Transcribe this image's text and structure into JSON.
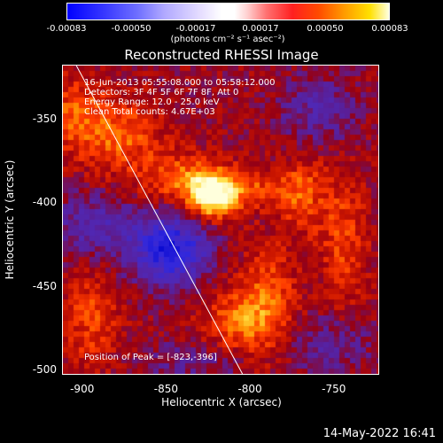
{
  "colorbar": {
    "ticks": [
      "-0.00083",
      "-0.00050",
      "-0.00017",
      "0.00017",
      "0.00050",
      "0.00083"
    ],
    "units": "(photons cm⁻² s⁻¹ asec⁻²)"
  },
  "chart_data": {
    "type": "heatmap",
    "title": "Reconstructed RHESSI Image",
    "xlabel": "Heliocentric X (arcsec)",
    "ylabel": "Heliocentric Y (arcsec)",
    "xlim": [
      -912,
      -724
    ],
    "ylim": [
      -502,
      -318
    ],
    "xticks": [
      "-900",
      "-850",
      "-800",
      "-750"
    ],
    "yticks": [
      "-350",
      "-400",
      "-450",
      "-500"
    ],
    "zlim": [
      -0.00083,
      0.00083
    ],
    "peak": [
      -823,
      -396
    ],
    "limb_line": [
      [
        -904,
        -318
      ],
      [
        -805,
        -502
      ]
    ],
    "blobs": [
      {
        "x": -823,
        "y": -396,
        "sx": 10,
        "sy": 9,
        "a": 0.00085
      },
      {
        "x": -840,
        "y": -385,
        "sx": 18,
        "sy": 10,
        "a": 0.0004
      },
      {
        "x": -800,
        "y": -392,
        "sx": 16,
        "sy": 8,
        "a": 0.0003
      },
      {
        "x": -770,
        "y": -395,
        "sx": 10,
        "sy": 15,
        "a": 0.00035
      },
      {
        "x": -745,
        "y": -420,
        "sx": 10,
        "sy": 28,
        "a": 0.0003
      },
      {
        "x": -790,
        "y": -460,
        "sx": 12,
        "sy": 22,
        "a": 0.0004
      },
      {
        "x": -810,
        "y": -470,
        "sx": 14,
        "sy": 12,
        "a": 0.00035
      },
      {
        "x": -880,
        "y": -360,
        "sx": 18,
        "sy": 15,
        "a": 0.0004
      },
      {
        "x": -905,
        "y": -345,
        "sx": 12,
        "sy": 15,
        "a": 0.0003
      },
      {
        "x": -895,
        "y": -468,
        "sx": 12,
        "sy": 22,
        "a": 0.0003
      },
      {
        "x": -848,
        "y": -428,
        "sx": 16,
        "sy": 14,
        "a": -0.00075
      },
      {
        "x": -895,
        "y": -415,
        "sx": 18,
        "sy": 14,
        "a": -0.00035
      },
      {
        "x": -760,
        "y": -345,
        "sx": 15,
        "sy": 14,
        "a": -0.0003
      },
      {
        "x": -755,
        "y": -485,
        "sx": 18,
        "sy": 12,
        "a": -0.00025
      },
      {
        "x": -835,
        "y": -495,
        "sx": 20,
        "sy": 8,
        "a": -0.0002
      }
    ]
  },
  "annotations": {
    "time": "16-Jun-2013 05:55:08.000 to 05:58:12.000",
    "detectors": "Detectors: 3F 4F 5F 6F 7F 8F, Att 0",
    "energy": "Energy Range: 12.0 - 25.0 keV",
    "clean": "Clean     Total counts: 4.67E+03",
    "peak_label": "Position of Peak = [-823,-396]"
  },
  "timestamp": "14-May-2022 16:41"
}
